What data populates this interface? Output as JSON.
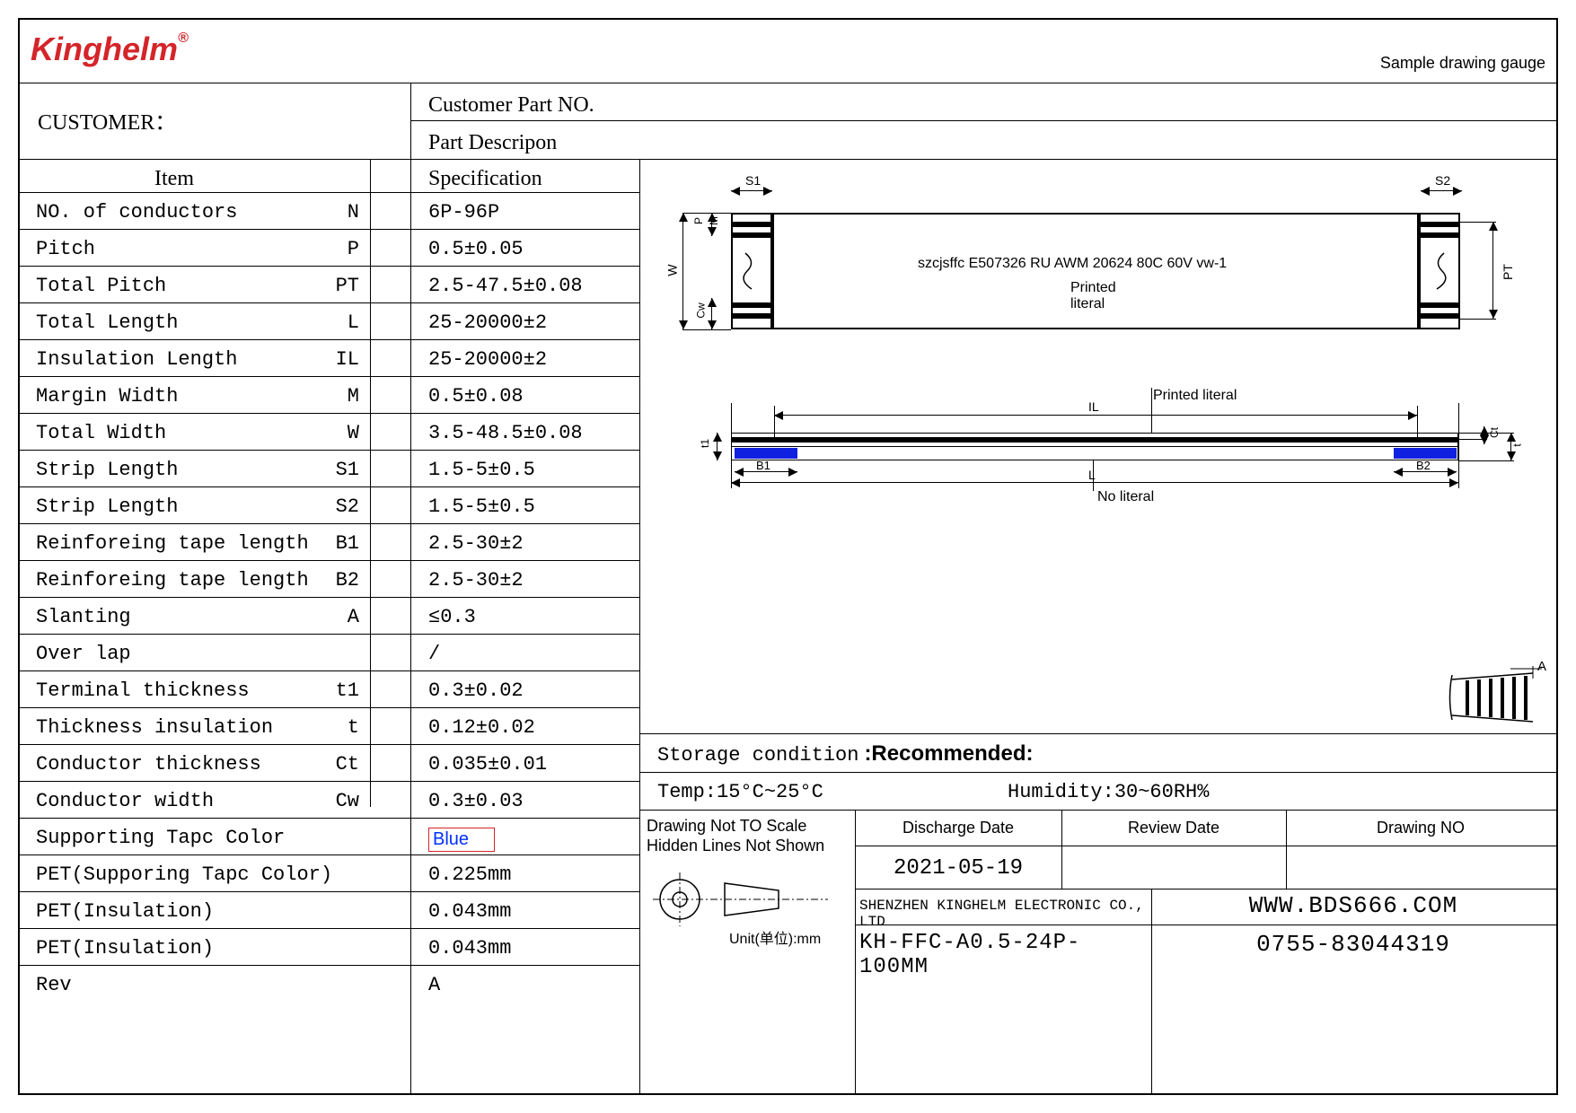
{
  "brand": "Kinghelm",
  "brand_trademark": "®",
  "sample_tag": "Sample drawing gauge",
  "header": {
    "customer": "CUSTOMER：",
    "cust_part_no": "Customer Part NO.",
    "part_desc": "Part Descripon"
  },
  "columns": {
    "item": "Item",
    "spec": "Specification"
  },
  "rows": [
    {
      "item": "NO. of conductors",
      "sym": "N",
      "spec": "6P-96P"
    },
    {
      "item": "Pitch",
      "sym": "P",
      "spec": "0.5±0.05"
    },
    {
      "item": "Total Pitch",
      "sym": "PT",
      "spec": "2.5-47.5±0.08"
    },
    {
      "item": "Total Length",
      "sym": "L",
      "spec": "25-20000±2"
    },
    {
      "item": "Insulation Length",
      "sym": "IL",
      "spec": "25-20000±2"
    },
    {
      "item": "Margin Width",
      "sym": "M",
      "spec": "0.5±0.08"
    },
    {
      "item": "Total Width",
      "sym": "W",
      "spec": "3.5-48.5±0.08"
    },
    {
      "item": "Strip Length",
      "sym": "S1",
      "spec": "1.5-5±0.5"
    },
    {
      "item": "Strip Length",
      "sym": "S2",
      "spec": "1.5-5±0.5"
    },
    {
      "item": "Reinforeing tape length",
      "sym": "B1",
      "spec": "2.5-30±2"
    },
    {
      "item": "Reinforeing tape length",
      "sym": "B2",
      "spec": "2.5-30±2"
    },
    {
      "item": "Slanting",
      "sym": "A",
      "spec": "≤0.3"
    },
    {
      "item": "Over lap",
      "sym": "",
      "spec": "  /"
    },
    {
      "item": "Terminal thickness",
      "sym": "t1",
      "spec": "0.3±0.02"
    },
    {
      "item": "Thickness insulation",
      "sym": "t",
      "spec": "0.12±0.02"
    },
    {
      "item": "Conductor thickness",
      "sym": "Ct",
      "spec": "0.035±0.01"
    },
    {
      "item": "Conductor width",
      "sym": "Cw",
      "spec": "0.3±0.03"
    },
    {
      "item": "Supporting Tapc Color",
      "sym": "",
      "spec_special": "Blue"
    },
    {
      "item": "PET(Supporing Tapc Color)",
      "sym": "",
      "spec": "0.225mm"
    },
    {
      "item": "PET(Insulation)",
      "sym": "",
      "spec": "0.043mm"
    },
    {
      "item": "PET(Insulation)",
      "sym": "",
      "spec": "0.043mm"
    },
    {
      "item": "Rev",
      "sym": "",
      "spec": "A"
    }
  ],
  "diagram": {
    "top_text": "szcjsffc E507326 RU AWM 20624 80C 60V vw-1",
    "printed": "Printed",
    "literal": "literal",
    "labels": {
      "S1": "S1",
      "S2": "S2",
      "W": "W",
      "P": "P",
      "M": "M",
      "Cw": "Cw",
      "PT": "PT",
      "IL": "IL",
      "L": "L",
      "B1": "B1",
      "B2": "B2",
      "t1": "t1",
      "Ct": "Ct",
      "t": "t",
      "A": "A"
    },
    "printed_literal_top": "Printed literal",
    "no_literal": "No literal"
  },
  "storage": {
    "title_l": "Storage condition",
    "title_r": ":Recommended:",
    "temp": "Temp:15°C~25°C",
    "humidity": "Humidity:30~60RH%"
  },
  "bottom": {
    "note1": "Drawing Not TO Scale",
    "note2": "Hidden Lines Not Shown",
    "unit": "Unit(单位):mm",
    "discharge_h": "Discharge Date",
    "review_h": "Review Date",
    "drawing_h": "Drawing NO",
    "discharge_v": "2021-05-19",
    "company": "SHENZHEN KINGHELM ELECTRONIC CO., LTD",
    "website": "WWW.BDS666.COM",
    "part": "KH-FFC-A0.5-24P-100MM",
    "phone": "0755-83044319"
  },
  "colors": {
    "brand": "#d4252a",
    "blue_tape": "#1020e0",
    "blue_text": "#0030ff",
    "border": "#000000"
  }
}
